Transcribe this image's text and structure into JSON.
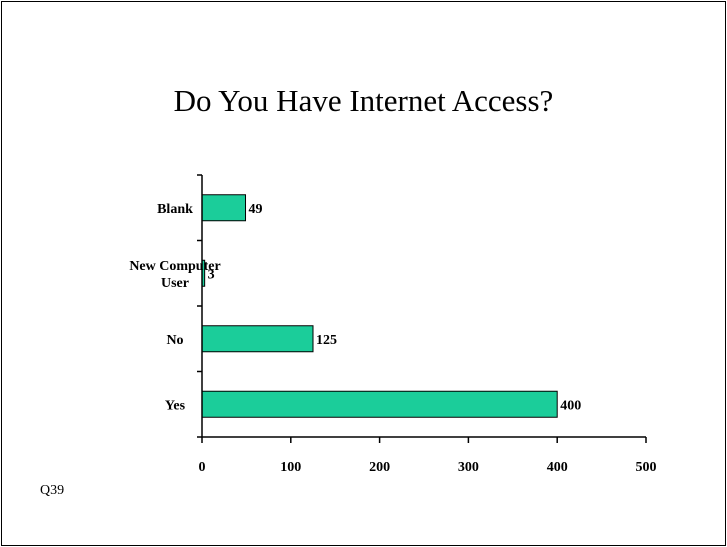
{
  "title": "Do You Have Internet Access?",
  "footnote": "Q39",
  "colors": {
    "bar_fill": "#1BCD9A",
    "bar_stroke": "#000000",
    "axis": "#000000"
  },
  "chart_data": {
    "type": "bar",
    "orientation": "horizontal",
    "title": "Do You Have Internet Access?",
    "categories": [
      "Blank",
      "New Computer User",
      "No",
      "Yes"
    ],
    "category_label_lines": [
      [
        "Blank"
      ],
      [
        "New Computer",
        "User"
      ],
      [
        "No"
      ],
      [
        "Yes"
      ]
    ],
    "values": [
      49,
      3,
      125,
      400
    ],
    "data_labels": [
      "49",
      "3",
      "125",
      "400"
    ],
    "xlim": [
      0,
      500
    ],
    "x_ticks": [
      0,
      100,
      200,
      300,
      400,
      500
    ],
    "x_tick_labels": [
      "0",
      "100",
      "200",
      "300",
      "400",
      "500"
    ],
    "xlabel": "",
    "ylabel": "",
    "grid": false,
    "legend": "none"
  }
}
